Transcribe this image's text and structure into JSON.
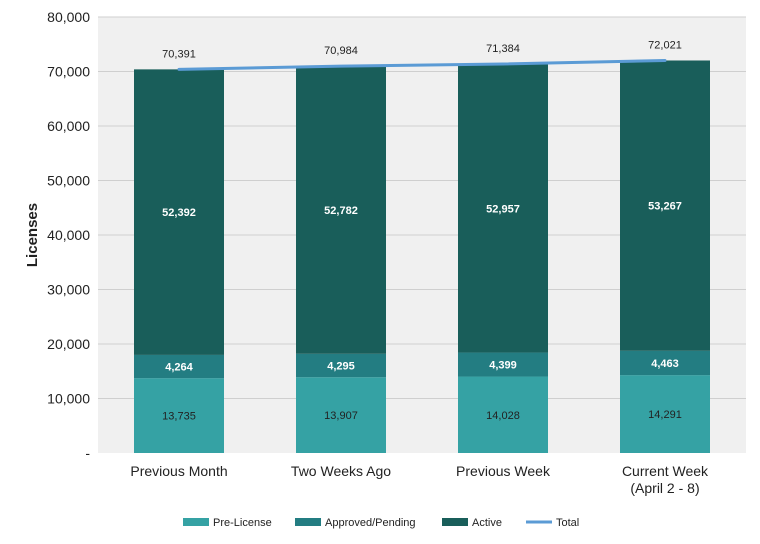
{
  "chart_data": {
    "type": "bar",
    "stacked": true,
    "categories": [
      "Previous Month",
      "Two Weeks Ago",
      "Previous Week",
      "Current Week\n(April 2 - 8)"
    ],
    "series": [
      {
        "name": "Pre-License",
        "values": [
          13735,
          13907,
          14028,
          14291
        ],
        "color": "#35a2a4",
        "labels": [
          "13,735",
          "13,907",
          "14,028",
          "14,291"
        ]
      },
      {
        "name": "Approved/Pending",
        "values": [
          4264,
          4295,
          4399,
          4463
        ],
        "color": "#237d82",
        "labels": [
          "4,264",
          "4,295",
          "4,399",
          "4,463"
        ]
      },
      {
        "name": "Active",
        "values": [
          52392,
          52782,
          52957,
          53267
        ],
        "color": "#195e5a",
        "labels": [
          "52,392",
          "52,782",
          "52,957",
          "53,267"
        ]
      }
    ],
    "total": {
      "name": "Total",
      "type": "line",
      "values": [
        70391,
        70984,
        71384,
        72021
      ],
      "labels": [
        "70,391",
        "70,984",
        "71,384",
        "72,021"
      ],
      "color": "#5b9bd5"
    },
    "xlabel": "",
    "ylabel": "Licenses",
    "ylim": [
      0,
      80000
    ],
    "yticks": [
      0,
      10000,
      20000,
      30000,
      40000,
      50000,
      60000,
      70000,
      80000
    ],
    "ytick_labels": [
      "-",
      "10,000",
      "20,000",
      "30,000",
      "40,000",
      "50,000",
      "60,000",
      "70,000",
      "80,000"
    ],
    "grid": true,
    "plot_background": "#f0f0f0",
    "legend_position": "bottom"
  }
}
